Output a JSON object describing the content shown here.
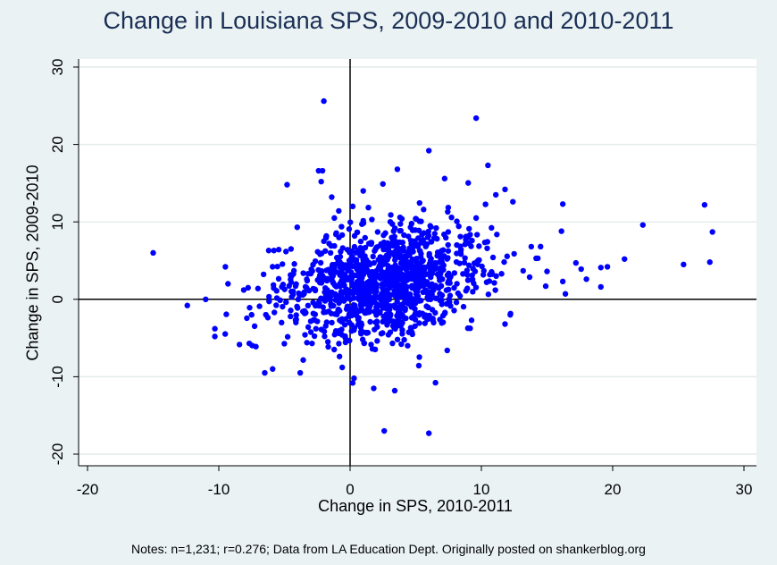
{
  "chart_data": {
    "type": "scatter",
    "title": "Change in Louisiana SPS, 2009-2010 and 2010-2011",
    "xlabel": "Change in SPS, 2010-2011",
    "ylabel": "Change in SPS, 2009-2010",
    "xlim": [
      -20,
      30
    ],
    "ylim": [
      -20,
      30
    ],
    "xticks": [
      -20,
      -10,
      0,
      10,
      20,
      30
    ],
    "yticks": [
      -20,
      -10,
      0,
      10,
      20,
      30
    ],
    "grid": true,
    "reference_lines": {
      "x": 0,
      "y": 0
    },
    "notes": "Notes: n=1,231; r=0.276; Data from LA Education Dept. Originally posted on shankerblog.org",
    "colors": {
      "points": "#0000ff",
      "title": "#1a2f55",
      "background": "#eaf2f3",
      "plot_area": "#ffffff",
      "grid": "#e4ecec"
    },
    "points_shown": [
      [
        -15,
        6
      ],
      [
        -12.4,
        -0.8
      ],
      [
        -11,
        0
      ],
      [
        -10.3,
        -3.8
      ],
      [
        -10.3,
        -4.8
      ],
      [
        -9.5,
        4.2
      ],
      [
        -9.3,
        2
      ],
      [
        -6.5,
        -9.5
      ],
      [
        -5.9,
        -9
      ],
      [
        -7.5,
        -2
      ],
      [
        -6.2,
        6.3
      ],
      [
        -5.8,
        6.3
      ],
      [
        -4.8,
        14.8
      ],
      [
        -4.5,
        6.5
      ],
      [
        -3.8,
        -9.5
      ],
      [
        -2.4,
        16.6
      ],
      [
        -2.1,
        16.6
      ],
      [
        -2.2,
        15.2
      ],
      [
        -2,
        25.6
      ],
      [
        -1.4,
        13.2
      ],
      [
        -1.2,
        10.5
      ],
      [
        -0.6,
        -8.8
      ],
      [
        0.2,
        -10.8
      ],
      [
        0.3,
        -10.2
      ],
      [
        1.8,
        -11.5
      ],
      [
        2.6,
        -17
      ],
      [
        3.4,
        -11.8
      ],
      [
        6,
        -17.3
      ],
      [
        0.2,
        12
      ],
      [
        1,
        14
      ],
      [
        2.5,
        14.9
      ],
      [
        3.6,
        16.8
      ],
      [
        6,
        19.2
      ],
      [
        7.2,
        15.6
      ],
      [
        9.6,
        23.4
      ],
      [
        10.5,
        17.3
      ],
      [
        11.8,
        14.2
      ],
      [
        11.1,
        13.5
      ],
      [
        12.4,
        12.6
      ],
      [
        9.6,
        10.5
      ],
      [
        13.8,
        6.8
      ],
      [
        14.3,
        5.3
      ],
      [
        15,
        3.6
      ],
      [
        14.9,
        1.7
      ],
      [
        16.2,
        12.3
      ],
      [
        16.1,
        8.8
      ],
      [
        16.2,
        2.3
      ],
      [
        16.4,
        0.7
      ],
      [
        17.2,
        4.7
      ],
      [
        17.6,
        3.9
      ],
      [
        18,
        2.6
      ],
      [
        19.1,
        4.1
      ],
      [
        19.6,
        4.2
      ],
      [
        19.1,
        1.6
      ],
      [
        20.9,
        5.2
      ],
      [
        22.3,
        9.6
      ],
      [
        25.4,
        4.5
      ],
      [
        27,
        12.2
      ],
      [
        27.4,
        4.8
      ],
      [
        27.6,
        8.7
      ],
      [
        8.4,
        8.1
      ],
      [
        9.3,
        3.1
      ],
      [
        10.4,
        2.2
      ],
      [
        11.8,
        -3.2
      ],
      [
        12.2,
        -2
      ],
      [
        -3.2,
        3.3
      ],
      [
        -2.6,
        -3.8
      ],
      [
        -1.8,
        2.6
      ],
      [
        -0.9,
        4.9
      ],
      [
        -0.2,
        6.4
      ],
      [
        0.5,
        1.5
      ],
      [
        1.3,
        3.8
      ],
      [
        2.2,
        0.2
      ],
      [
        2.8,
        5.7
      ],
      [
        3.5,
        2.6
      ],
      [
        4.2,
        -1.2
      ],
      [
        4.8,
        6.9
      ],
      [
        5.3,
        3.3
      ],
      [
        6.1,
        0.7
      ],
      [
        6.8,
        4.8
      ],
      [
        7.6,
        2.1
      ],
      [
        8.1,
        -0.4
      ],
      [
        -4.1,
        -2.6
      ],
      [
        -3.5,
        0.9
      ],
      [
        -5.2,
        1.6
      ],
      [
        -6.9,
        -0.9
      ],
      [
        -8.1,
        1.2
      ],
      [
        -2.9,
        -5.7
      ],
      [
        1.7,
        -6.4
      ],
      [
        3.9,
        -5.8
      ],
      [
        5.7,
        -3.1
      ],
      [
        7.4,
        -6.6
      ],
      [
        2.1,
        8.7
      ],
      [
        3.1,
        10.9
      ],
      [
        4.6,
        9.3
      ],
      [
        5.6,
        11.6
      ],
      [
        6.4,
        7.9
      ],
      [
        0.9,
        9.7
      ],
      [
        -0.6,
        8.3
      ],
      [
        -1.6,
        7.2
      ]
    ]
  }
}
